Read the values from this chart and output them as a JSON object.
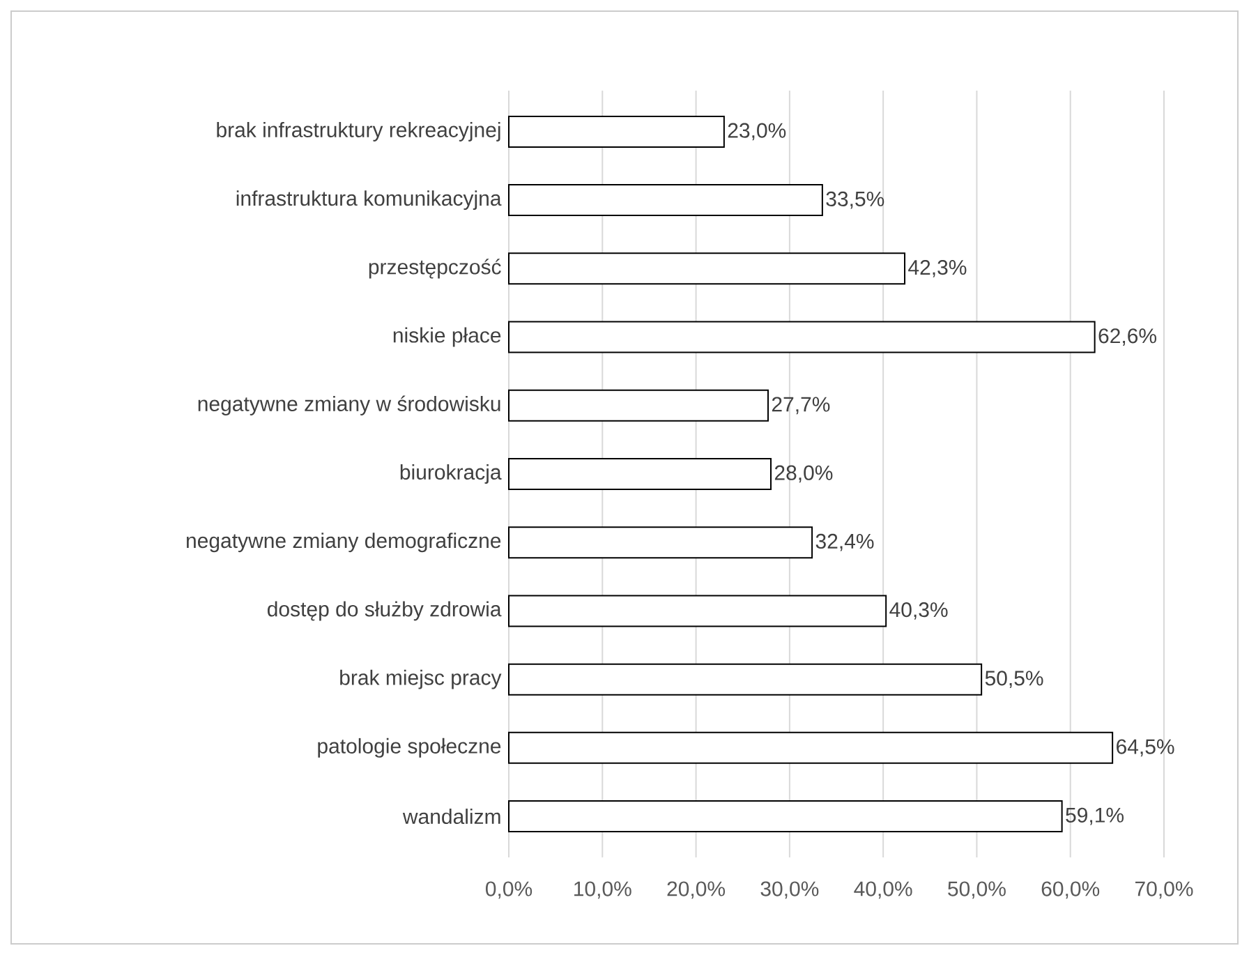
{
  "chart_data": {
    "type": "bar",
    "orientation": "horizontal",
    "categories": [
      "brak infrastruktury rekreacyjnej",
      "infrastruktura komunikacyjna",
      "przestępczość",
      "niskie płace",
      "negatywne zmiany w środowisku",
      "biurokracja",
      "negatywne zmiany demograficzne",
      "dostęp do służby zdrowia",
      "brak miejsc pracy",
      "patologie społeczne",
      "wandalizm"
    ],
    "values": [
      23.0,
      33.5,
      42.3,
      62.6,
      27.7,
      28.0,
      32.4,
      40.3,
      50.5,
      64.5,
      59.1
    ],
    "value_labels": [
      "23,0%",
      "33,5%",
      "42,3%",
      "62,6%",
      "27,7%",
      "28,0%",
      "32,4%",
      "40,3%",
      "50,5%",
      "64,5%",
      "59,1%"
    ],
    "color": "#ffffff",
    "xlim": [
      0,
      70
    ],
    "xticks": [
      {
        "value": 0,
        "label": "0,0%"
      },
      {
        "value": 10,
        "label": "10,0%"
      },
      {
        "value": 20,
        "label": "20,0%"
      },
      {
        "value": 30,
        "label": "30,0%"
      },
      {
        "value": 40,
        "label": "40,0%"
      },
      {
        "value": 50,
        "label": "50,0%"
      },
      {
        "value": 60,
        "label": "60,0%"
      },
      {
        "value": 70,
        "label": "70,0%"
      }
    ],
    "grid": "x"
  }
}
